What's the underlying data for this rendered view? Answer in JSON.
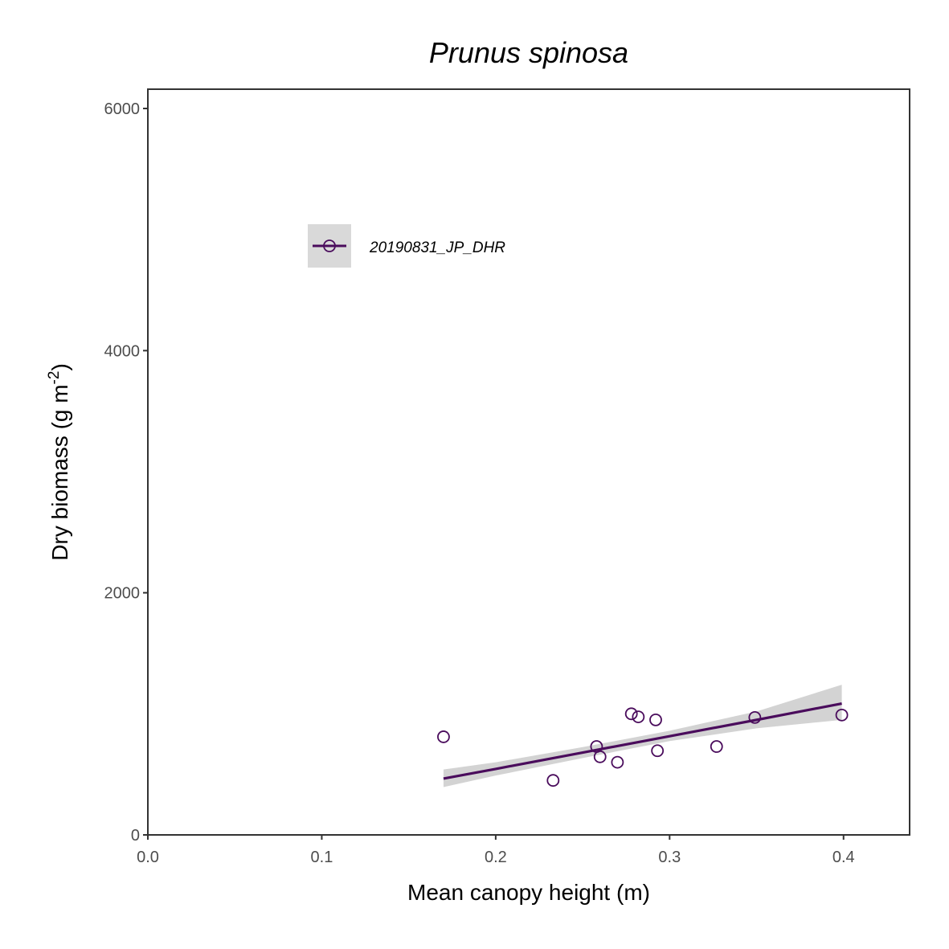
{
  "chart_data": {
    "type": "scatter",
    "title": "Prunus spinosa",
    "xlabel": "Mean canopy height (m)",
    "ylabel": {
      "main": "Dry biomass (g m",
      "superscript": "-2",
      "close": ")"
    },
    "xlim": [
      0,
      0.438
    ],
    "ylim": [
      0,
      6000
    ],
    "x_ticks": [
      0.0,
      0.1,
      0.2,
      0.3,
      0.4
    ],
    "x_tick_labels": [
      "0.0",
      "0.1",
      "0.2",
      "0.3",
      "0.4"
    ],
    "y_ticks": [
      0,
      2000,
      4000,
      6000
    ],
    "y_tick_labels": [
      "0",
      "2000",
      "4000",
      "6000"
    ],
    "grid": false,
    "legend_position": "top-left",
    "series": [
      {
        "name": "20190831_JP_DHR",
        "color": "#4a0c5c",
        "marker": "open-circle",
        "points": [
          {
            "x": 0.17,
            "y": 810
          },
          {
            "x": 0.233,
            "y": 450
          },
          {
            "x": 0.258,
            "y": 730
          },
          {
            "x": 0.26,
            "y": 645
          },
          {
            "x": 0.27,
            "y": 600
          },
          {
            "x": 0.278,
            "y": 1000
          },
          {
            "x": 0.282,
            "y": 975
          },
          {
            "x": 0.292,
            "y": 950
          },
          {
            "x": 0.293,
            "y": 695
          },
          {
            "x": 0.327,
            "y": 730
          },
          {
            "x": 0.349,
            "y": 970
          },
          {
            "x": 0.399,
            "y": 990
          }
        ],
        "fit": {
          "x": [
            0.17,
            0.2,
            0.25,
            0.3,
            0.35,
            0.399
          ],
          "y": [
            465,
            545,
            680,
            815,
            950,
            1085
          ],
          "ci_low": [
            395,
            490,
            635,
            775,
            880,
            950
          ],
          "ci_high": [
            540,
            600,
            725,
            860,
            1020,
            1240
          ]
        }
      }
    ]
  }
}
